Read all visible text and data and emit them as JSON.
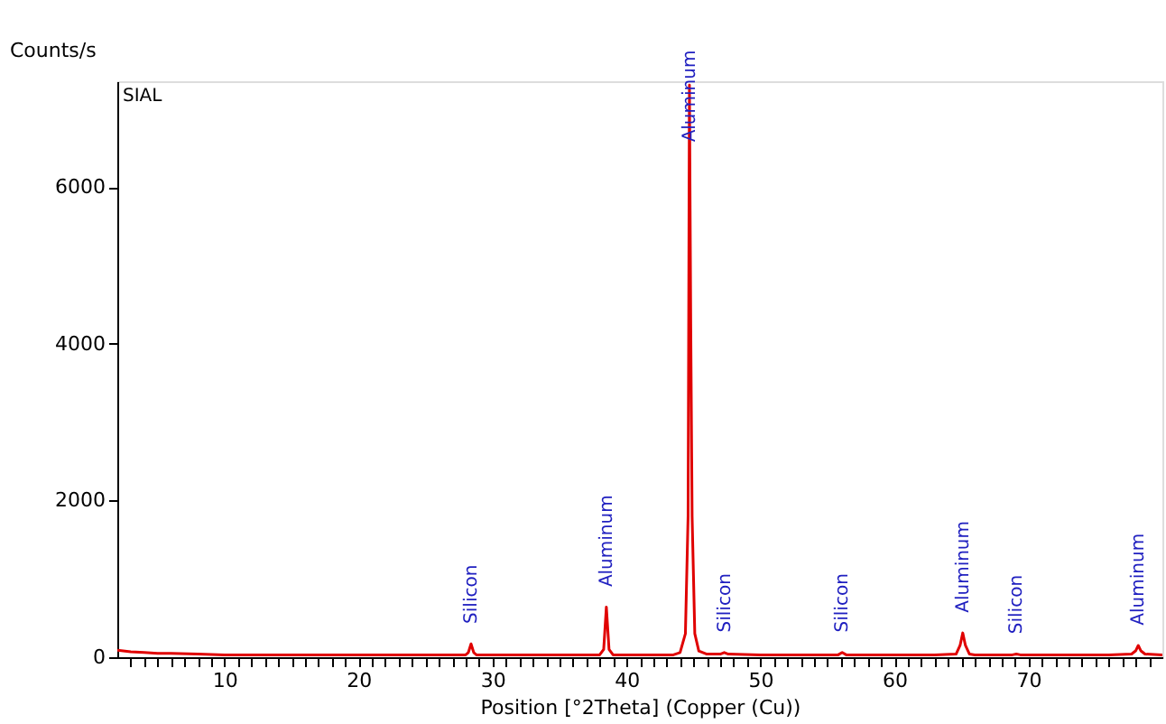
{
  "chart_data": {
    "type": "line",
    "xlabel": "Position [°2Theta] (Copper (Cu))",
    "ylabel": "Counts/s",
    "x": [
      2,
      3,
      4,
      5,
      6,
      8,
      10,
      15,
      20,
      25,
      27,
      28,
      28.2,
      28.4,
      28.6,
      28.8,
      30,
      35,
      37,
      38,
      38.3,
      38.5,
      38.7,
      39,
      40,
      42,
      43.5,
      44,
      44.4,
      44.6,
      44.7,
      44.8,
      44.9,
      45.1,
      45.4,
      46,
      47,
      47.3,
      47.6,
      50,
      54,
      55.8,
      56.1,
      56.4,
      60,
      63,
      64.6,
      64.9,
      65.1,
      65.3,
      65.6,
      66,
      68.8,
      69.1,
      69.4,
      72,
      76,
      77.7,
      78.0,
      78.2,
      78.4,
      78.7,
      80
    ],
    "series": [
      {
        "color": "#e00000",
        "values": [
          90,
          70,
          60,
          50,
          50,
          40,
          30,
          30,
          30,
          30,
          30,
          30,
          60,
          170,
          60,
          30,
          30,
          30,
          30,
          30,
          100,
          640,
          100,
          30,
          30,
          30,
          30,
          60,
          300,
          1800,
          7300,
          4200,
          1800,
          300,
          80,
          40,
          40,
          60,
          40,
          30,
          30,
          30,
          60,
          30,
          30,
          30,
          40,
          150,
          310,
          150,
          40,
          30,
          30,
          40,
          30,
          30,
          30,
          40,
          80,
          150,
          80,
          40,
          30
        ]
      }
    ],
    "xlim": [
      2,
      80
    ],
    "ylim": [
      0,
      7350
    ],
    "xticks": [
      {
        "value": 3,
        "label": null
      },
      {
        "value": 4,
        "label": null
      },
      {
        "value": 5,
        "label": null
      },
      {
        "value": 6,
        "label": null
      },
      {
        "value": 7,
        "label": null
      },
      {
        "value": 8,
        "label": null
      },
      {
        "value": 9,
        "label": null
      },
      10,
      {
        "value": 11,
        "label": null
      },
      {
        "value": 12,
        "label": null
      },
      {
        "value": 13,
        "label": null
      },
      {
        "value": 14,
        "label": null
      },
      {
        "value": 15,
        "label": null
      },
      {
        "value": 16,
        "label": null
      },
      {
        "value": 17,
        "label": null
      },
      {
        "value": 18,
        "label": null
      },
      {
        "value": 19,
        "label": null
      },
      20,
      {
        "value": 21,
        "label": null
      },
      {
        "value": 22,
        "label": null
      },
      {
        "value": 23,
        "label": null
      },
      {
        "value": 24,
        "label": null
      },
      {
        "value": 25,
        "label": null
      },
      {
        "value": 26,
        "label": null
      },
      {
        "value": 27,
        "label": null
      },
      {
        "value": 28,
        "label": null
      },
      {
        "value": 29,
        "label": null
      },
      30,
      {
        "value": 31,
        "label": null
      },
      {
        "value": 32,
        "label": null
      },
      {
        "value": 33,
        "label": null
      },
      {
        "value": 34,
        "label": null
      },
      {
        "value": 35,
        "label": null
      },
      {
        "value": 36,
        "label": null
      },
      {
        "value": 37,
        "label": null
      },
      {
        "value": 38,
        "label": null
      },
      {
        "value": 39,
        "label": null
      },
      40,
      {
        "value": 41,
        "label": null
      },
      {
        "value": 42,
        "label": null
      },
      {
        "value": 43,
        "label": null
      },
      {
        "value": 44,
        "label": null
      },
      {
        "value": 45,
        "label": null
      },
      {
        "value": 46,
        "label": null
      },
      {
        "value": 47,
        "label": null
      },
      {
        "value": 48,
        "label": null
      },
      {
        "value": 49,
        "label": null
      },
      50,
      {
        "value": 51,
        "label": null
      },
      {
        "value": 52,
        "label": null
      },
      {
        "value": 53,
        "label": null
      },
      {
        "value": 54,
        "label": null
      },
      {
        "value": 55,
        "label": null
      },
      {
        "value": 56,
        "label": null
      },
      {
        "value": 57,
        "label": null
      },
      {
        "value": 58,
        "label": null
      },
      {
        "value": 59,
        "label": null
      },
      60,
      {
        "value": 61,
        "label": null
      },
      {
        "value": 62,
        "label": null
      },
      {
        "value": 63,
        "label": null
      },
      {
        "value": 64,
        "label": null
      },
      {
        "value": 65,
        "label": null
      },
      {
        "value": 66,
        "label": null
      },
      {
        "value": 67,
        "label": null
      },
      {
        "value": 68,
        "label": null
      },
      {
        "value": 69,
        "label": null
      },
      70,
      {
        "value": 71,
        "label": null
      },
      {
        "value": 72,
        "label": null
      },
      {
        "value": 73,
        "label": null
      },
      {
        "value": 74,
        "label": null
      },
      {
        "value": 75,
        "label": null
      },
      {
        "value": 76,
        "label": null
      },
      {
        "value": 77,
        "label": null
      },
      {
        "value": 78,
        "label": null
      },
      {
        "value": 79,
        "label": null
      }
    ],
    "yticks": [
      0,
      2000,
      4000,
      6000
    ],
    "grid": false,
    "line_style": "solid",
    "marker": "none",
    "annotations": [
      "SIAL",
      {
        "text": "Silicon",
        "x": 28.4,
        "y": 170
      },
      {
        "text": "Aluminum",
        "x": 38.5,
        "y": 640
      },
      {
        "text": "Aluminum",
        "x": 44.7,
        "y": 7300
      },
      {
        "text": "Silicon",
        "x": 47.3,
        "y": 60
      },
      {
        "text": "Silicon",
        "x": 56.1,
        "y": 60
      },
      {
        "text": "Aluminum",
        "x": 65.1,
        "y": 310
      },
      {
        "text": "Silicon",
        "x": 69.1,
        "y": 40
      },
      {
        "text": "Aluminum",
        "x": 78.2,
        "y": 150
      }
    ]
  }
}
